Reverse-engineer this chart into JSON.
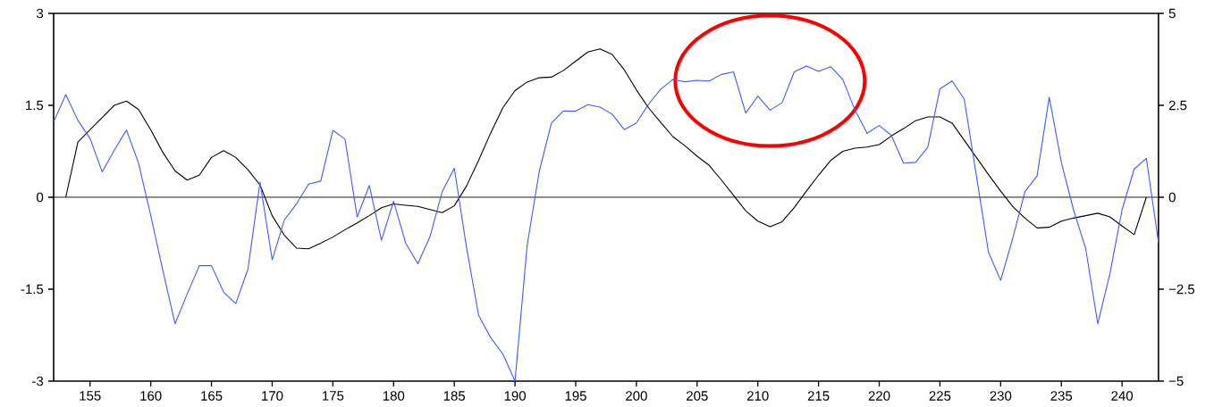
{
  "chart_data": {
    "type": "line",
    "x": [
      152,
      153,
      154,
      155,
      156,
      157,
      158,
      159,
      160,
      161,
      162,
      163,
      164,
      165,
      166,
      167,
      168,
      169,
      170,
      171,
      172,
      173,
      174,
      175,
      176,
      177,
      178,
      179,
      180,
      181,
      182,
      183,
      184,
      185,
      186,
      187,
      188,
      189,
      190,
      191,
      192,
      193,
      194,
      195,
      196,
      197,
      198,
      199,
      200,
      201,
      202,
      203,
      204,
      205,
      206,
      207,
      208,
      209,
      210,
      211,
      212,
      213,
      214,
      215,
      216,
      217,
      218,
      219,
      220,
      221,
      222,
      223,
      224,
      225,
      226,
      227,
      228,
      229,
      230,
      231,
      232,
      233,
      234,
      235,
      236,
      237,
      238,
      239,
      240,
      241,
      242,
      243
    ],
    "series": [
      {
        "color": "#000000",
        "x": [
          153,
          154,
          155,
          156,
          157,
          158,
          159,
          160,
          161,
          162,
          163,
          164,
          165,
          166,
          167,
          168,
          169,
          170,
          171,
          172,
          173,
          174,
          175,
          176,
          177,
          178,
          179,
          180,
          181,
          182,
          183,
          184,
          185,
          186,
          187,
          188,
          189,
          190,
          191,
          192,
          193,
          194,
          195,
          196,
          197,
          198,
          199,
          200,
          201,
          202,
          203,
          204,
          205,
          206,
          207,
          208,
          209,
          210,
          211,
          212,
          213,
          214,
          215,
          216,
          217,
          218,
          219,
          220,
          221,
          222,
          223,
          224,
          225,
          226,
          227,
          228,
          229,
          230,
          231,
          232,
          233,
          234,
          235,
          236,
          237,
          238,
          239,
          240,
          241,
          242
        ],
        "values": [
          0,
          0.9,
          1.1,
          1.3,
          1.5,
          1.57,
          1.43,
          1.1,
          0.73,
          0.43,
          0.28,
          0.36,
          0.65,
          0.76,
          0.65,
          0.45,
          0.2,
          -0.3,
          -0.62,
          -0.83,
          -0.84,
          -0.75,
          -0.65,
          -0.53,
          -0.42,
          -0.3,
          -0.17,
          -0.11,
          -0.13,
          -0.15,
          -0.2,
          -0.25,
          -0.14,
          0.18,
          0.6,
          1.05,
          1.46,
          1.74,
          1.88,
          1.95,
          1.96,
          2.07,
          2.22,
          2.37,
          2.42,
          2.33,
          2.08,
          1.75,
          1.46,
          1.22,
          0.99,
          0.84,
          0.67,
          0.52,
          0.28,
          0.03,
          -0.22,
          -0.39,
          -0.48,
          -0.4,
          -0.17,
          0.1,
          0.36,
          0.6,
          0.75,
          0.8,
          0.82,
          0.86,
          1.0,
          1.12,
          1.25,
          1.31,
          1.31,
          1.21,
          0.93,
          0.65,
          0.37,
          0.1,
          -0.15,
          -0.34,
          -0.5,
          -0.49,
          -0.39,
          -0.34,
          -0.3,
          -0.26,
          -0.32,
          -0.47,
          -0.61,
          0
        ]
      },
      {
        "color": "#3f5bff",
        "axis": "y2",
        "values": [
          2.05,
          2.79,
          2.09,
          1.6,
          0.69,
          1.28,
          1.83,
          0.92,
          -0.5,
          -2.0,
          -3.44,
          -2.63,
          -1.86,
          -1.86,
          -2.58,
          -2.89,
          -1.96,
          0.41,
          -1.7,
          -0.62,
          -0.18,
          0.36,
          0.44,
          1.82,
          1.58,
          -0.54,
          0.32,
          -1.17,
          -0.11,
          -1.25,
          -1.81,
          -1.07,
          0.15,
          0.79,
          -1.35,
          -3.21,
          -3.82,
          -4.26,
          -5,
          -1.31,
          0.71,
          2.02,
          2.35,
          2.34,
          2.52,
          2.45,
          2.26,
          1.84,
          2.02,
          2.53,
          2.94,
          3.2,
          3.14,
          3.18,
          3.16,
          3.34,
          3.41,
          2.29,
          2.75,
          2.37,
          2.57,
          3.41,
          3.57,
          3.42,
          3.55,
          3.2,
          2.37,
          1.74,
          1.95,
          1.68,
          0.93,
          0.95,
          1.36,
          2.95,
          3.16,
          2.67,
          0.59,
          -1.5,
          -2.26,
          -1.11,
          0.15,
          0.58,
          2.72,
          0.95,
          -0.34,
          -1.39,
          -3.44,
          -2.08,
          -0.34,
          0.77,
          1.06,
          -1.23
        ]
      }
    ],
    "xlim": [
      152,
      243
    ],
    "xticks": [
      155,
      160,
      165,
      170,
      175,
      180,
      185,
      190,
      195,
      200,
      205,
      210,
      215,
      220,
      225,
      230,
      235,
      240
    ],
    "ylim": [
      -3,
      3
    ],
    "yticks": [
      -3,
      -1.5,
      0,
      1.5,
      3
    ],
    "y2lim": [
      -5,
      5
    ],
    "y2ticks": [
      {
        "value": -5,
        "label": "−5"
      },
      {
        "value": -2.5,
        "label": "−2.5"
      },
      0,
      2.5,
      5
    ],
    "ref_lines": [
      {
        "axis": "y",
        "value": 0,
        "color": "#000000"
      }
    ],
    "grid": false,
    "marker": "none",
    "line_style": "solid"
  }
}
